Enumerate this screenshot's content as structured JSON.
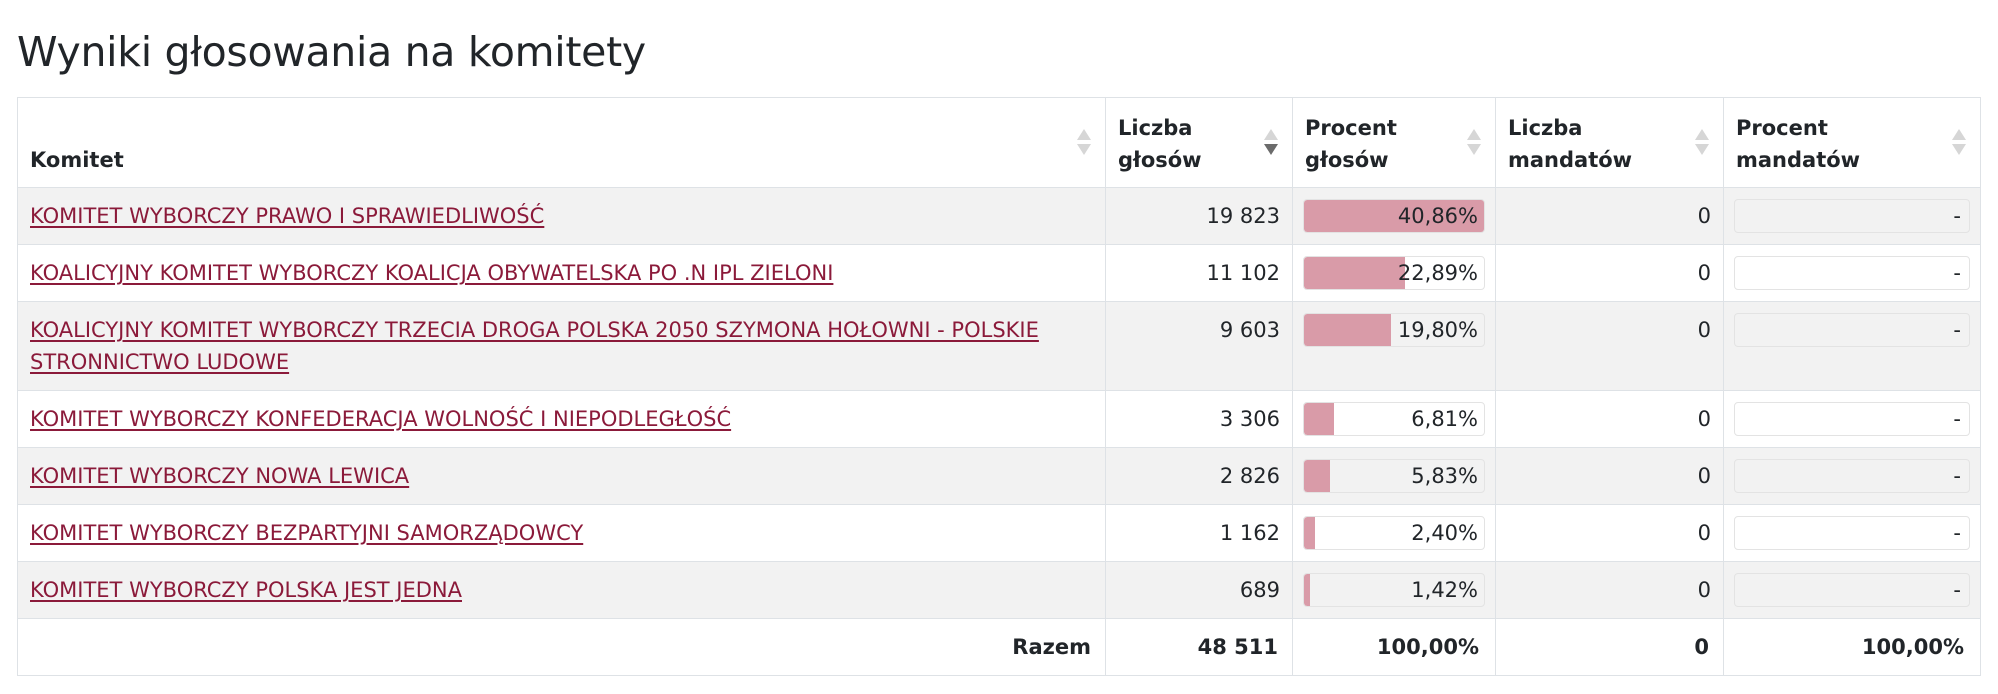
{
  "page": {
    "title": "Wyniki głosowania na komitety"
  },
  "table": {
    "headers": {
      "committee": "Komitet",
      "votes_line1": "Liczba",
      "votes_line2": "głosów",
      "vote_pct_line1": "Procent",
      "vote_pct_line2": "głosów",
      "seats_line1": "Liczba",
      "seats_line2": "mandatów",
      "seat_pct_line1": "Procent",
      "seat_pct_line2": "mandatów"
    },
    "sorted_column": "votes",
    "sort_direction": "descending",
    "rows": [
      {
        "name": "KOMITET WYBORCZY PRAWO I SPRAWIEDLIWOŚĆ",
        "votes": "19 823",
        "vote_pct": "40,86%",
        "vote_frac": 1.0,
        "seats": "0",
        "seat_pct": "-"
      },
      {
        "name": "KOALICYJNY KOMITET WYBORCZY KOALICJA OBYWATELSKA PO .N IPL ZIELONI",
        "votes": "11 102",
        "vote_pct": "22,89%",
        "vote_frac": 0.5602,
        "seats": "0",
        "seat_pct": "-"
      },
      {
        "name": "KOALICYJNY KOMITET WYBORCZY TRZECIA DROGA POLSKA 2050 SZYMONA HOŁOWNI - POLSKIE STRONNICTWO LUDOWE",
        "votes": "9 603",
        "vote_pct": "19,80%",
        "vote_frac": 0.4846,
        "seats": "0",
        "seat_pct": "-"
      },
      {
        "name": "KOMITET WYBORCZY KONFEDERACJA WOLNOŚĆ I NIEPODLEGŁOŚĆ",
        "votes": "3 306",
        "vote_pct": "6,81%",
        "vote_frac": 0.1667,
        "seats": "0",
        "seat_pct": "-"
      },
      {
        "name": "KOMITET WYBORCZY NOWA LEWICA",
        "votes": "2 826",
        "vote_pct": "5,83%",
        "vote_frac": 0.1427,
        "seats": "0",
        "seat_pct": "-"
      },
      {
        "name": "KOMITET WYBORCZY BEZPARTYJNI SAMORZĄDOWCY",
        "votes": "1 162",
        "vote_pct": "2,40%",
        "vote_frac": 0.0587,
        "seats": "0",
        "seat_pct": "-"
      },
      {
        "name": "KOMITET WYBORCZY POLSKA JEST JEDNA",
        "votes": "689",
        "vote_pct": "1,42%",
        "vote_frac": 0.0348,
        "seats": "0",
        "seat_pct": "-"
      }
    ],
    "footer": {
      "label": "Razem",
      "votes": "48 511",
      "vote_pct": "100,00%",
      "seats": "0",
      "seat_pct": "100,00%"
    }
  },
  "colors": {
    "link": "#8b1a3a",
    "bar_fill": "#d99ba8",
    "stripe": "#f2f2f2",
    "border": "#dee2e6"
  }
}
